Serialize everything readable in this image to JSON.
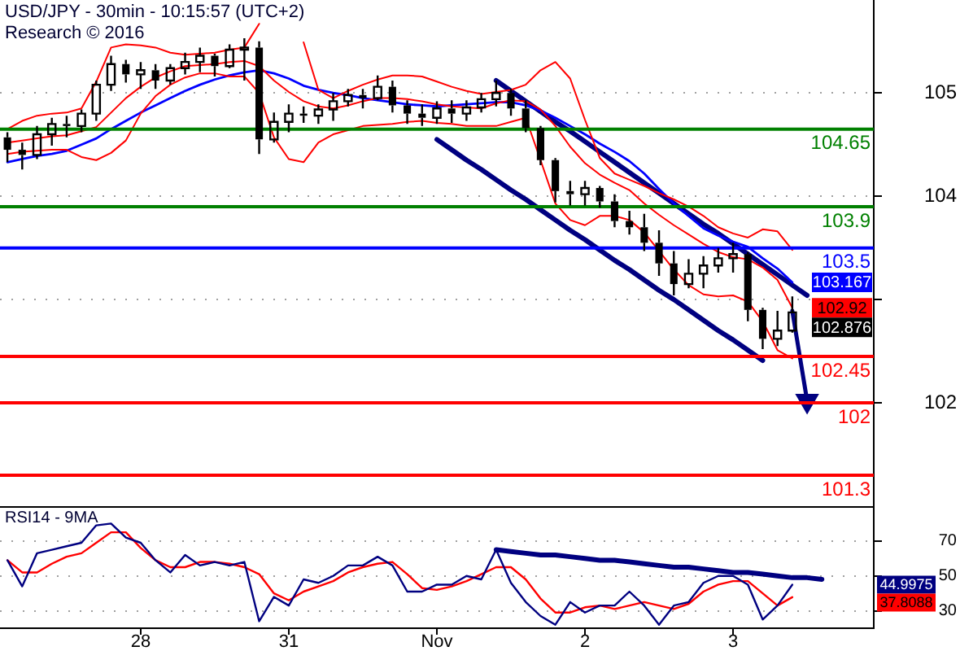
{
  "chart_data": [
    {
      "type": "candlestick",
      "title": "USD/JPY - 30min - 10:15:57 (UTC+2)",
      "subtitle": "Research © 2016",
      "color": "#000000",
      "categories": [
        null,
        null,
        null,
        null,
        null,
        null,
        null,
        null,
        null,
        null,
        null,
        null,
        null,
        null,
        null,
        null,
        null,
        null,
        null,
        null,
        null,
        null,
        null,
        null,
        null,
        null,
        null,
        null,
        null,
        null,
        null,
        null,
        null,
        null,
        null,
        null,
        null,
        null,
        null,
        null,
        null,
        null,
        null,
        null,
        null,
        null,
        null,
        null,
        null,
        null,
        null,
        null,
        null,
        null,
        null,
        null,
        null,
        null,
        null
      ],
      "ohlc": [
        [
          104.57,
          104.62,
          104.33,
          104.45
        ],
        [
          104.45,
          104.52,
          104.26,
          104.4
        ],
        [
          104.4,
          104.68,
          104.36,
          104.6
        ],
        [
          104.6,
          104.76,
          104.49,
          104.7
        ],
        [
          104.7,
          104.78,
          104.57,
          104.68
        ],
        [
          104.68,
          104.84,
          104.62,
          104.8
        ],
        [
          104.8,
          105.12,
          104.73,
          105.08
        ],
        [
          105.08,
          105.36,
          105.02,
          105.28
        ],
        [
          105.28,
          105.32,
          105.1,
          105.18
        ],
        [
          105.18,
          105.3,
          105.04,
          105.22
        ],
        [
          105.22,
          105.28,
          105.04,
          105.12
        ],
        [
          105.12,
          105.28,
          105.08,
          105.24
        ],
        [
          105.24,
          105.39,
          105.18,
          105.3
        ],
        [
          105.3,
          105.44,
          105.2,
          105.36
        ],
        [
          105.36,
          105.38,
          105.16,
          105.26
        ],
        [
          105.26,
          105.47,
          105.24,
          105.42
        ],
        [
          105.42,
          105.53,
          105.12,
          105.44
        ],
        [
          105.44,
          105.5,
          104.41,
          104.55
        ],
        [
          104.55,
          104.81,
          104.52,
          104.72
        ],
        [
          104.72,
          104.89,
          104.62,
          104.8
        ],
        [
          104.8,
          104.87,
          104.71,
          104.78
        ],
        [
          104.78,
          104.89,
          104.7,
          104.84
        ],
        [
          104.84,
          105.0,
          104.73,
          104.92
        ],
        [
          104.92,
          105.04,
          104.87,
          104.98
        ],
        [
          104.98,
          105.04,
          104.85,
          104.95
        ],
        [
          104.95,
          105.17,
          104.93,
          105.06
        ],
        [
          105.06,
          105.12,
          104.81,
          104.88
        ],
        [
          104.88,
          104.93,
          104.7,
          104.8
        ],
        [
          104.8,
          104.89,
          104.68,
          104.76
        ],
        [
          104.76,
          104.92,
          104.7,
          104.85
        ],
        [
          104.85,
          104.93,
          104.71,
          104.8
        ],
        [
          104.8,
          104.93,
          104.73,
          104.86
        ],
        [
          104.86,
          105.0,
          104.81,
          104.94
        ],
        [
          104.94,
          105.12,
          104.87,
          105.0
        ],
        [
          105.0,
          105.04,
          104.78,
          104.85
        ],
        [
          104.85,
          104.93,
          104.62,
          104.66
        ],
        [
          104.66,
          104.68,
          104.3,
          104.35
        ],
        [
          104.35,
          104.37,
          103.94,
          104.05
        ],
        [
          104.05,
          104.15,
          103.91,
          104.02
        ],
        [
          104.02,
          104.15,
          103.91,
          104.08
        ],
        [
          104.08,
          104.1,
          103.89,
          103.95
        ],
        [
          103.95,
          104.02,
          103.7,
          103.76
        ],
        [
          103.76,
          103.86,
          103.63,
          103.7
        ],
        [
          103.7,
          103.83,
          103.47,
          103.55
        ],
        [
          103.55,
          103.67,
          103.23,
          103.35
        ],
        [
          103.35,
          103.47,
          103.04,
          103.15
        ],
        [
          103.15,
          103.39,
          103.11,
          103.25
        ],
        [
          103.25,
          103.42,
          103.11,
          103.33
        ],
        [
          103.33,
          103.5,
          103.26,
          103.4
        ],
        [
          103.4,
          103.55,
          103.26,
          103.44
        ],
        [
          103.44,
          103.46,
          102.79,
          102.9
        ],
        [
          102.9,
          102.92,
          102.52,
          102.62
        ],
        [
          102.62,
          102.89,
          102.55,
          102.7
        ],
        [
          102.7,
          103.03,
          102.68,
          102.876
        ],
        null,
        null,
        null,
        null,
        null
      ],
      "series": [
        {
          "type": "line",
          "color": "#ff0000",
          "values": [
            104.65,
            104.73,
            104.78,
            104.8,
            104.81,
            104.85,
            105.11,
            105.44,
            105.47,
            105.46,
            105.44,
            105.39,
            105.37,
            105.38,
            105.39,
            105.42,
            105.44,
            105.67,
            null,
            null,
            105.49,
            105.03,
            104.95,
            105.02,
            105.08,
            105.13,
            105.17,
            105.17,
            105.16,
            105.11,
            105.06,
            105.02,
            104.99,
            105.01,
            105.03,
            105.08,
            105.22,
            105.3,
            105.14,
            104.74,
            104.37,
            104.22,
            104.16,
            104.1,
            104.03,
            103.97,
            103.9,
            103.81,
            103.7,
            103.64,
            103.6,
            103.68,
            103.66,
            103.48,
            null,
            null,
            null,
            null,
            null
          ]
        },
        {
          "type": "line",
          "color": "#ff0000",
          "values": [
            104.52,
            104.54,
            104.56,
            104.58,
            104.59,
            104.63,
            104.67,
            104.81,
            104.95,
            105.06,
            105.15,
            105.21,
            105.26,
            105.27,
            105.28,
            105.3,
            105.31,
            105.26,
            105.12,
            105.01,
            104.92,
            104.87,
            104.85,
            104.88,
            104.92,
            104.95,
            104.95,
            104.94,
            104.92,
            104.89,
            104.87,
            104.86,
            104.85,
            104.9,
            104.93,
            104.92,
            104.84,
            104.68,
            104.48,
            104.32,
            104.21,
            104.13,
            104.06,
            103.93,
            103.82,
            103.72,
            103.63,
            103.54,
            103.46,
            103.41,
            103.39,
            103.31,
            103.19,
            102.92,
            null,
            null,
            null,
            null,
            null
          ],
          "value_labels": [
            null,
            null,
            null,
            null,
            null,
            null,
            null,
            null,
            null,
            null,
            null,
            null,
            null,
            null,
            null,
            null,
            null,
            null,
            null,
            null,
            null,
            null,
            null,
            null,
            null,
            null,
            null,
            null,
            null,
            null,
            null,
            null,
            null,
            null,
            null,
            null,
            null,
            null,
            null,
            null,
            null,
            null,
            null,
            null,
            null,
            null,
            null,
            null,
            null,
            null,
            null,
            null,
            null,
            "102.92",
            null,
            null,
            null,
            null,
            null
          ]
        },
        {
          "type": "line",
          "color": "#ff0000",
          "values": [
            104.41,
            104.43,
            104.44,
            104.45,
            104.45,
            104.38,
            104.35,
            104.42,
            104.54,
            104.8,
            104.97,
            105.08,
            105.15,
            105.19,
            105.19,
            105.16,
            105.16,
            105,
            104.57,
            104.36,
            104.33,
            104.52,
            104.6,
            104.64,
            104.68,
            104.69,
            104.7,
            104.72,
            104.73,
            104.71,
            104.7,
            104.68,
            104.68,
            104.68,
            104.72,
            104.76,
            104.35,
            103.93,
            103.77,
            103.72,
            103.81,
            103.81,
            103.77,
            103.65,
            103.47,
            103.29,
            103.14,
            103.05,
            103.03,
            103.04,
            102.98,
            102.79,
            102.51,
            102.43,
            null,
            null,
            null,
            null,
            null
          ]
        },
        {
          "type": "line",
          "color": "#0000ff",
          "values": [
            104.33,
            104.36,
            104.39,
            104.41,
            104.44,
            104.5,
            104.56,
            104.65,
            104.73,
            104.81,
            104.88,
            104.95,
            105.02,
            105.08,
            105.13,
            105.17,
            105.2,
            105.22,
            105.19,
            105.14,
            105.07,
            105.03,
            105,
            104.98,
            104.95,
            104.93,
            104.91,
            104.89,
            104.88,
            104.87,
            104.88,
            104.89,
            104.9,
            104.91,
            104.91,
            104.88,
            104.83,
            104.76,
            104.68,
            104.6,
            104.51,
            104.43,
            104.34,
            104.22,
            104.07,
            103.93,
            103.81,
            103.69,
            103.62,
            103.56,
            103.51,
            103.4,
            103.3,
            103.167,
            null,
            null,
            null,
            null,
            null
          ],
          "value_labels": [
            null,
            null,
            null,
            null,
            null,
            null,
            null,
            null,
            null,
            null,
            null,
            null,
            null,
            null,
            null,
            null,
            null,
            null,
            null,
            null,
            null,
            null,
            null,
            null,
            null,
            null,
            null,
            null,
            null,
            null,
            null,
            null,
            null,
            null,
            null,
            null,
            null,
            null,
            null,
            null,
            null,
            null,
            null,
            null,
            null,
            null,
            null,
            null,
            null,
            null,
            null,
            null,
            null,
            "103.167",
            null,
            null,
            null,
            null,
            null
          ]
        },
        {
          "type": "line",
          "color": "#000080",
          "values": [
            null,
            null,
            null,
            null,
            null,
            null,
            null,
            null,
            null,
            null,
            null,
            null,
            null,
            null,
            null,
            null,
            null,
            null,
            null,
            null,
            null,
            null,
            null,
            null,
            null,
            null,
            null,
            null,
            null,
            null,
            null,
            null,
            null,
            105.12,
            105.02,
            104.92,
            104.82,
            104.72,
            104.63,
            104.53,
            104.43,
            104.33,
            104.23,
            104.13,
            104.03,
            103.93,
            103.83,
            103.73,
            103.64,
            103.54,
            103.44,
            103.34,
            103.24,
            103.14,
            103.04,
            null,
            null,
            null,
            null
          ]
        },
        {
          "type": "line",
          "color": "#000080",
          "values": [
            null,
            null,
            null,
            null,
            null,
            null,
            null,
            null,
            null,
            null,
            null,
            null,
            null,
            null,
            null,
            null,
            null,
            null,
            null,
            null,
            null,
            null,
            null,
            null,
            null,
            null,
            null,
            null,
            null,
            104.55,
            104.45,
            104.35,
            104.26,
            104.16,
            104.06,
            103.97,
            103.87,
            103.77,
            103.67,
            103.58,
            103.48,
            103.38,
            103.29,
            103.19,
            103.09,
            103.0,
            102.9,
            102.8,
            102.7,
            102.61,
            102.51,
            102.41,
            null,
            null,
            null,
            null,
            null,
            null,
            null
          ]
        },
        {
          "type": "line",
          "color": "#000080",
          "marker": "triangle",
          "values": [
            null,
            null,
            null,
            null,
            null,
            null,
            null,
            null,
            null,
            null,
            null,
            null,
            null,
            null,
            null,
            null,
            null,
            null,
            null,
            null,
            null,
            null,
            null,
            null,
            null,
            null,
            null,
            null,
            null,
            null,
            null,
            null,
            null,
            null,
            null,
            null,
            null,
            null,
            null,
            null,
            null,
            null,
            null,
            null,
            null,
            null,
            null,
            null,
            null,
            null,
            null,
            null,
            null,
            102.89,
            102.02,
            null,
            null,
            null,
            null
          ]
        }
      ],
      "ylim": [
        101,
        105.9
      ],
      "yticks": [
        102,
        {
          "value": 103,
          "label": null
        },
        104,
        105
      ],
      "ref_lines": [
        {
          "axis": "y",
          "value": 104.65,
          "label": "104.65",
          "color": "#008000"
        },
        {
          "axis": "y",
          "value": 103.9,
          "label": "103.9",
          "color": "#008000"
        },
        {
          "axis": "y",
          "value": 103.5,
          "label": "103.5",
          "color": "#0000ff"
        },
        {
          "axis": "y",
          "value": 102.45,
          "label": "102.45",
          "color": "#ff0000"
        },
        {
          "axis": "y",
          "value": 102,
          "label": "102",
          "color": "#ff0000"
        },
        {
          "axis": "y",
          "value": 101.3,
          "label": "101.3",
          "color": "#ff0000"
        }
      ],
      "annotations": [
        "102.876"
      ],
      "grid": "y",
      "tick_labels": "y"
    },
    {
      "type": "line",
      "title": "RSI14 - 9MA",
      "categories": [
        null,
        null,
        null,
        null,
        null,
        null,
        null,
        null,
        null,
        "28",
        null,
        null,
        null,
        null,
        null,
        null,
        null,
        null,
        null,
        "31",
        null,
        null,
        null,
        null,
        null,
        null,
        null,
        null,
        null,
        "Nov",
        null,
        null,
        null,
        null,
        null,
        null,
        null,
        null,
        null,
        "2",
        null,
        null,
        null,
        null,
        null,
        null,
        null,
        null,
        null,
        "3",
        null,
        null,
        null,
        null,
        null,
        null,
        null,
        null,
        null
      ],
      "series": [
        {
          "color": "#000080",
          "values": [
            59,
            44,
            63,
            65,
            67,
            69,
            79,
            80,
            72,
            69,
            59,
            52,
            62,
            56,
            58,
            56,
            58,
            24,
            38,
            33,
            48,
            46,
            50,
            56,
            56,
            61,
            56,
            41,
            41,
            45,
            45,
            50,
            48,
            65,
            46,
            35,
            27,
            22,
            35,
            29,
            33,
            33,
            41,
            33,
            22,
            33,
            35,
            46,
            50,
            50,
            45,
            25,
            33,
            44.9975,
            null,
            null,
            null,
            null,
            null
          ]
        },
        {
          "color": "#ff0000",
          "values": [
            59,
            52,
            52,
            57,
            61,
            63,
            69,
            75,
            75,
            66,
            59,
            55,
            55,
            58,
            58,
            57,
            55,
            51,
            40,
            36,
            41,
            44,
            47,
            52,
            55,
            57,
            58,
            51,
            43,
            42,
            44,
            47,
            51,
            55,
            55,
            48,
            37,
            29,
            29,
            32,
            33,
            31,
            33,
            35,
            33,
            31,
            34,
            41,
            45,
            47,
            47,
            40,
            33,
            37.8088,
            null,
            null,
            null,
            null,
            null
          ]
        },
        {
          "color": "#000080",
          "values": [
            null,
            null,
            null,
            null,
            null,
            null,
            null,
            null,
            null,
            null,
            null,
            null,
            null,
            null,
            null,
            null,
            null,
            null,
            null,
            null,
            null,
            null,
            null,
            null,
            null,
            null,
            null,
            null,
            null,
            null,
            null,
            null,
            null,
            65,
            64,
            63,
            62,
            62,
            61,
            60,
            59,
            59,
            58,
            57,
            56,
            55,
            55,
            54,
            53,
            52,
            52,
            51,
            50,
            49,
            49,
            48,
            null,
            null,
            null
          ]
        }
      ],
      "ylim": [
        20,
        90
      ],
      "yticks": [
        30,
        50,
        70
      ],
      "annotations": [
        "44.9975",
        "37.8088"
      ],
      "grid": "y"
    }
  ]
}
